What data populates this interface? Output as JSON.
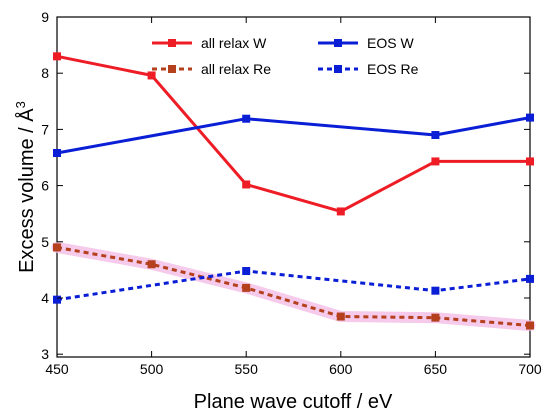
{
  "chart_data": {
    "type": "line",
    "xlabel": "Plane wave cutoff / eV",
    "ylabel": "Excess volume / Å",
    "ylabel_superscript": "3",
    "xlim": [
      450,
      700
    ],
    "ylim": [
      2.95,
      9.0
    ],
    "xticks": [
      450,
      500,
      550,
      600,
      650,
      700
    ],
    "yticks": [
      3,
      4,
      5,
      6,
      7,
      8,
      9
    ],
    "grid": false,
    "legend_placement": "top, two columns",
    "x": [
      450,
      500,
      550,
      600,
      650,
      700
    ],
    "series": [
      {
        "name": "all relax W",
        "color": "#ee1c25",
        "dashed": false,
        "values": [
          8.3,
          7.96,
          6.02,
          5.54,
          6.43,
          6.43
        ]
      },
      {
        "name": "all relax Re",
        "color": "#b5401e",
        "dashed": true,
        "highlight": "#f2b8e4",
        "values": [
          4.9,
          4.6,
          4.18,
          3.67,
          3.65,
          3.51
        ]
      },
      {
        "name": "EOS W",
        "color": "#0a1ed6",
        "dashed": false,
        "values": [
          6.58,
          null,
          7.19,
          null,
          6.9,
          7.21
        ]
      },
      {
        "name": "EOS Re",
        "color": "#0a1ed6",
        "dashed": true,
        "values": [
          3.97,
          null,
          4.48,
          null,
          4.13,
          4.34
        ]
      }
    ],
    "legend_order": [
      0,
      2,
      1,
      3
    ]
  }
}
